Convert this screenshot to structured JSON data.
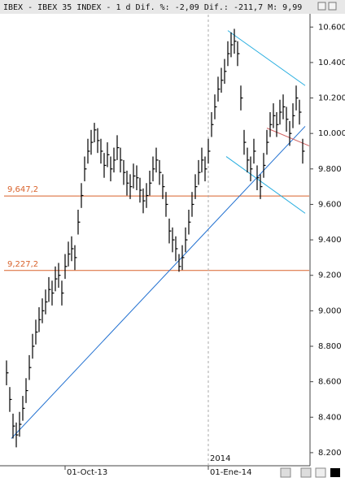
{
  "chart_data": {
    "type": "ohlc",
    "title": "IBEX - IBEX 35 INDEX - 1 d Dif. %: -2,09 Dif.: -211,7 M: 9,99",
    "categories": [
      null,
      null,
      null,
      null,
      null,
      null,
      null,
      null,
      null,
      null,
      null,
      null,
      null,
      null,
      null,
      null,
      null,
      null,
      "01-Oct-13",
      null,
      null,
      null,
      null,
      null,
      null,
      null,
      null,
      null,
      null,
      null,
      null,
      null,
      null,
      null,
      null,
      null,
      null,
      null,
      null,
      null,
      null,
      null,
      null,
      null,
      null,
      null,
      null,
      null,
      null,
      null,
      null,
      null,
      null,
      null,
      null,
      null,
      null,
      null,
      null,
      null,
      null,
      null,
      "01-Ene-14",
      null,
      null,
      null,
      null,
      null,
      null,
      null,
      null,
      null,
      null,
      null,
      null,
      null,
      null,
      null,
      null,
      null,
      null,
      null,
      null,
      null,
      null,
      null,
      null,
      null,
      null,
      null
    ],
    "highs": [
      8.72,
      8.57,
      8.42,
      8.37,
      8.43,
      8.52,
      8.62,
      8.75,
      8.87,
      8.95,
      9.02,
      9.07,
      9.12,
      9.19,
      9.17,
      9.25,
      9.27,
      9.17,
      9.32,
      9.39,
      9.42,
      9.37,
      9.57,
      9.72,
      9.87,
      9.97,
      10.02,
      10.06,
      10.03,
      9.97,
      9.89,
      9.95,
      9.87,
      9.92,
      9.99,
      9.92,
      9.85,
      9.79,
      9.77,
      9.83,
      9.82,
      9.75,
      9.69,
      9.72,
      9.79,
      9.87,
      9.92,
      9.85,
      9.77,
      9.67,
      9.52,
      9.47,
      9.42,
      9.32,
      9.37,
      9.47,
      9.57,
      9.67,
      9.77,
      9.85,
      9.92,
      9.87,
      9.97,
      10.12,
      10.22,
      10.32,
      10.37,
      10.42,
      10.52,
      10.57,
      10.59,
      10.52,
      10.27,
      10.02,
      9.92,
      9.87,
      9.97,
      9.82,
      9.77,
      9.89,
      10.02,
      10.12,
      10.17,
      10.12,
      10.19,
      10.22,
      10.15,
      10.07,
      10.17,
      10.27,
      10.19,
      9.97
    ],
    "lows": [
      8.58,
      8.43,
      8.28,
      8.23,
      8.29,
      8.38,
      8.48,
      8.61,
      8.73,
      8.81,
      8.88,
      8.93,
      8.98,
      9.05,
      9.03,
      9.11,
      9.13,
      9.03,
      9.18,
      9.25,
      9.28,
      9.23,
      9.43,
      9.58,
      9.73,
      9.83,
      9.88,
      9.95,
      9.89,
      9.83,
      9.75,
      9.81,
      9.73,
      9.78,
      9.85,
      9.78,
      9.71,
      9.65,
      9.63,
      9.69,
      9.68,
      9.61,
      9.55,
      9.58,
      9.65,
      9.73,
      9.78,
      9.71,
      9.63,
      9.53,
      9.38,
      9.33,
      9.28,
      9.22,
      9.23,
      9.33,
      9.43,
      9.53,
      9.63,
      9.71,
      9.78,
      9.73,
      9.83,
      9.98,
      10.08,
      10.18,
      10.23,
      10.28,
      10.38,
      10.43,
      10.45,
      10.38,
      10.13,
      9.88,
      9.78,
      9.73,
      9.83,
      9.68,
      9.63,
      9.75,
      9.88,
      9.98,
      10.03,
      9.98,
      10.05,
      10.08,
      10.01,
      9.93,
      10.03,
      10.13,
      10.05,
      9.83
    ],
    "closes": [
      8.65,
      8.5,
      8.35,
      8.3,
      8.36,
      8.45,
      8.55,
      8.68,
      8.8,
      8.88,
      8.95,
      9.0,
      9.05,
      9.12,
      9.1,
      9.18,
      9.2,
      9.1,
      9.25,
      9.32,
      9.35,
      9.3,
      9.5,
      9.65,
      9.8,
      9.9,
      9.95,
      10.02,
      9.96,
      9.9,
      9.82,
      9.88,
      9.8,
      9.85,
      9.92,
      9.85,
      9.78,
      9.72,
      9.7,
      9.76,
      9.75,
      9.68,
      9.62,
      9.65,
      9.72,
      9.8,
      9.85,
      9.78,
      9.7,
      9.6,
      9.45,
      9.4,
      9.35,
      9.25,
      9.3,
      9.4,
      9.5,
      9.6,
      9.7,
      9.78,
      9.85,
      9.8,
      9.9,
      10.05,
      10.15,
      10.25,
      10.3,
      10.35,
      10.45,
      10.5,
      10.52,
      10.45,
      10.2,
      9.95,
      9.85,
      9.8,
      9.9,
      9.75,
      9.7,
      9.82,
      9.95,
      10.05,
      10.1,
      10.05,
      10.12,
      10.15,
      10.08,
      10.0,
      10.1,
      10.2,
      10.12,
      9.9
    ],
    "color": "#000000",
    "xlim": [
      -0.75,
      93
    ],
    "ylim": [
      8.14,
      10.67
    ],
    "yticks": [
      {
        "value": 8.2,
        "label": "8.200"
      },
      {
        "value": 8.4,
        "label": "8.400"
      },
      {
        "value": 8.6,
        "label": "8.600"
      },
      {
        "value": 8.8,
        "label": "8.800"
      },
      {
        "value": 9.0,
        "label": "9.000"
      },
      {
        "value": 9.2,
        "label": "9.200"
      },
      {
        "value": 9.4,
        "label": "9.400"
      },
      {
        "value": 9.6,
        "label": "9.600"
      },
      {
        "value": 9.8,
        "label": "9.800"
      },
      {
        "value": 10.0,
        "label": "10.000"
      },
      {
        "value": 10.2,
        "label": "10.200"
      },
      {
        "value": 10.4,
        "label": "10.400"
      },
      {
        "value": 10.6,
        "label": "10.600"
      }
    ],
    "levels": [
      {
        "value": 9.6472,
        "label": "9,647,2",
        "color": "#d9622b"
      },
      {
        "value": 9.2272,
        "label": "9,227,2",
        "color": "#d9622b"
      }
    ],
    "period_marker": {
      "x": 62,
      "label": "2014"
    },
    "trendlines": [
      {
        "color": "#1f6fd0",
        "x": [
          1.5,
          91.75
        ],
        "y": [
          8.28,
          10.04
        ]
      },
      {
        "color": "#27aee0",
        "x": [
          68,
          91.75
        ],
        "y": [
          10.58,
          10.27
        ]
      },
      {
        "color": "#27aee0",
        "x": [
          67.5,
          91.75
        ],
        "y": [
          9.87,
          9.55
        ]
      },
      {
        "color": "#d06060",
        "x": [
          80,
          93
        ],
        "y": [
          10.03,
          9.93
        ]
      }
    ]
  }
}
